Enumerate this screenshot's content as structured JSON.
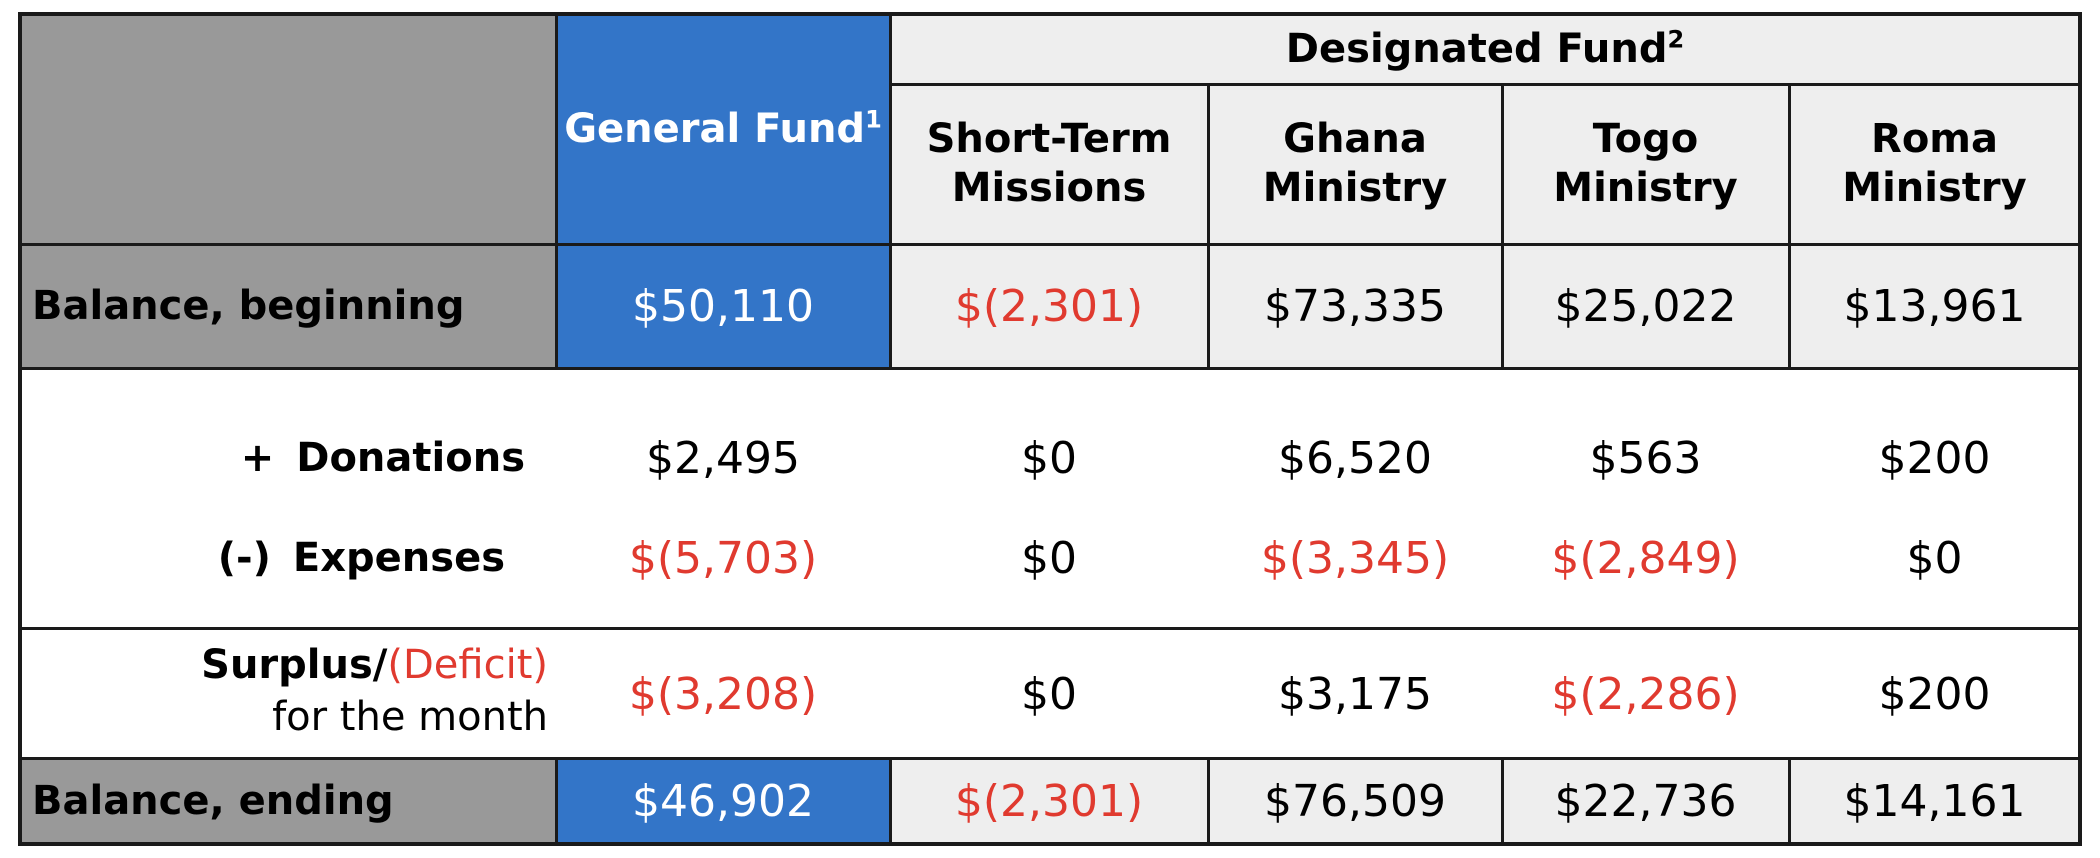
{
  "header": {
    "general_fund": "General Fund",
    "general_fund_note": "1",
    "designated_fund": "Designated Fund",
    "designated_fund_note": "2",
    "col_stm_1": "Short-Term",
    "col_stm_2": "Missions",
    "col_ghana_1": "Ghana",
    "col_ghana_2": "Ministry",
    "col_togo_1": "Togo",
    "col_togo_2": "Ministry",
    "col_roma_1": "Roma",
    "col_roma_2": "Ministry"
  },
  "rows": {
    "beginning": {
      "label": "Balance, beginning",
      "values": [
        "$50,110",
        "$(2,301)",
        "$73,335",
        "$25,022",
        "$13,961"
      ]
    },
    "donations": {
      "op": "+",
      "label": "Donations",
      "values": [
        "$2,495",
        "$0",
        "$6,520",
        "$563",
        "$200"
      ]
    },
    "expenses": {
      "op": "(-)",
      "label": "Expenses",
      "values": [
        "$(5,703)",
        "$0",
        "$(3,345)",
        "$(2,849)",
        "$0"
      ]
    },
    "surplus": {
      "label_a": "Surplus/",
      "label_b": "(Deficit)",
      "label_c": "for the month",
      "values": [
        "$(3,208)",
        "$0",
        "$3,175",
        "$(2,286)",
        "$200"
      ]
    },
    "ending": {
      "label": "Balance, ending",
      "values": [
        "$46,902",
        "$(2,301)",
        "$76,509",
        "$22,736",
        "$14,161"
      ]
    }
  },
  "colors": {
    "label_bg": "#999999",
    "general_fund_bg": "#3375c8",
    "designated_bg": "#eeeeee",
    "negative_text": "#e03a2f"
  }
}
